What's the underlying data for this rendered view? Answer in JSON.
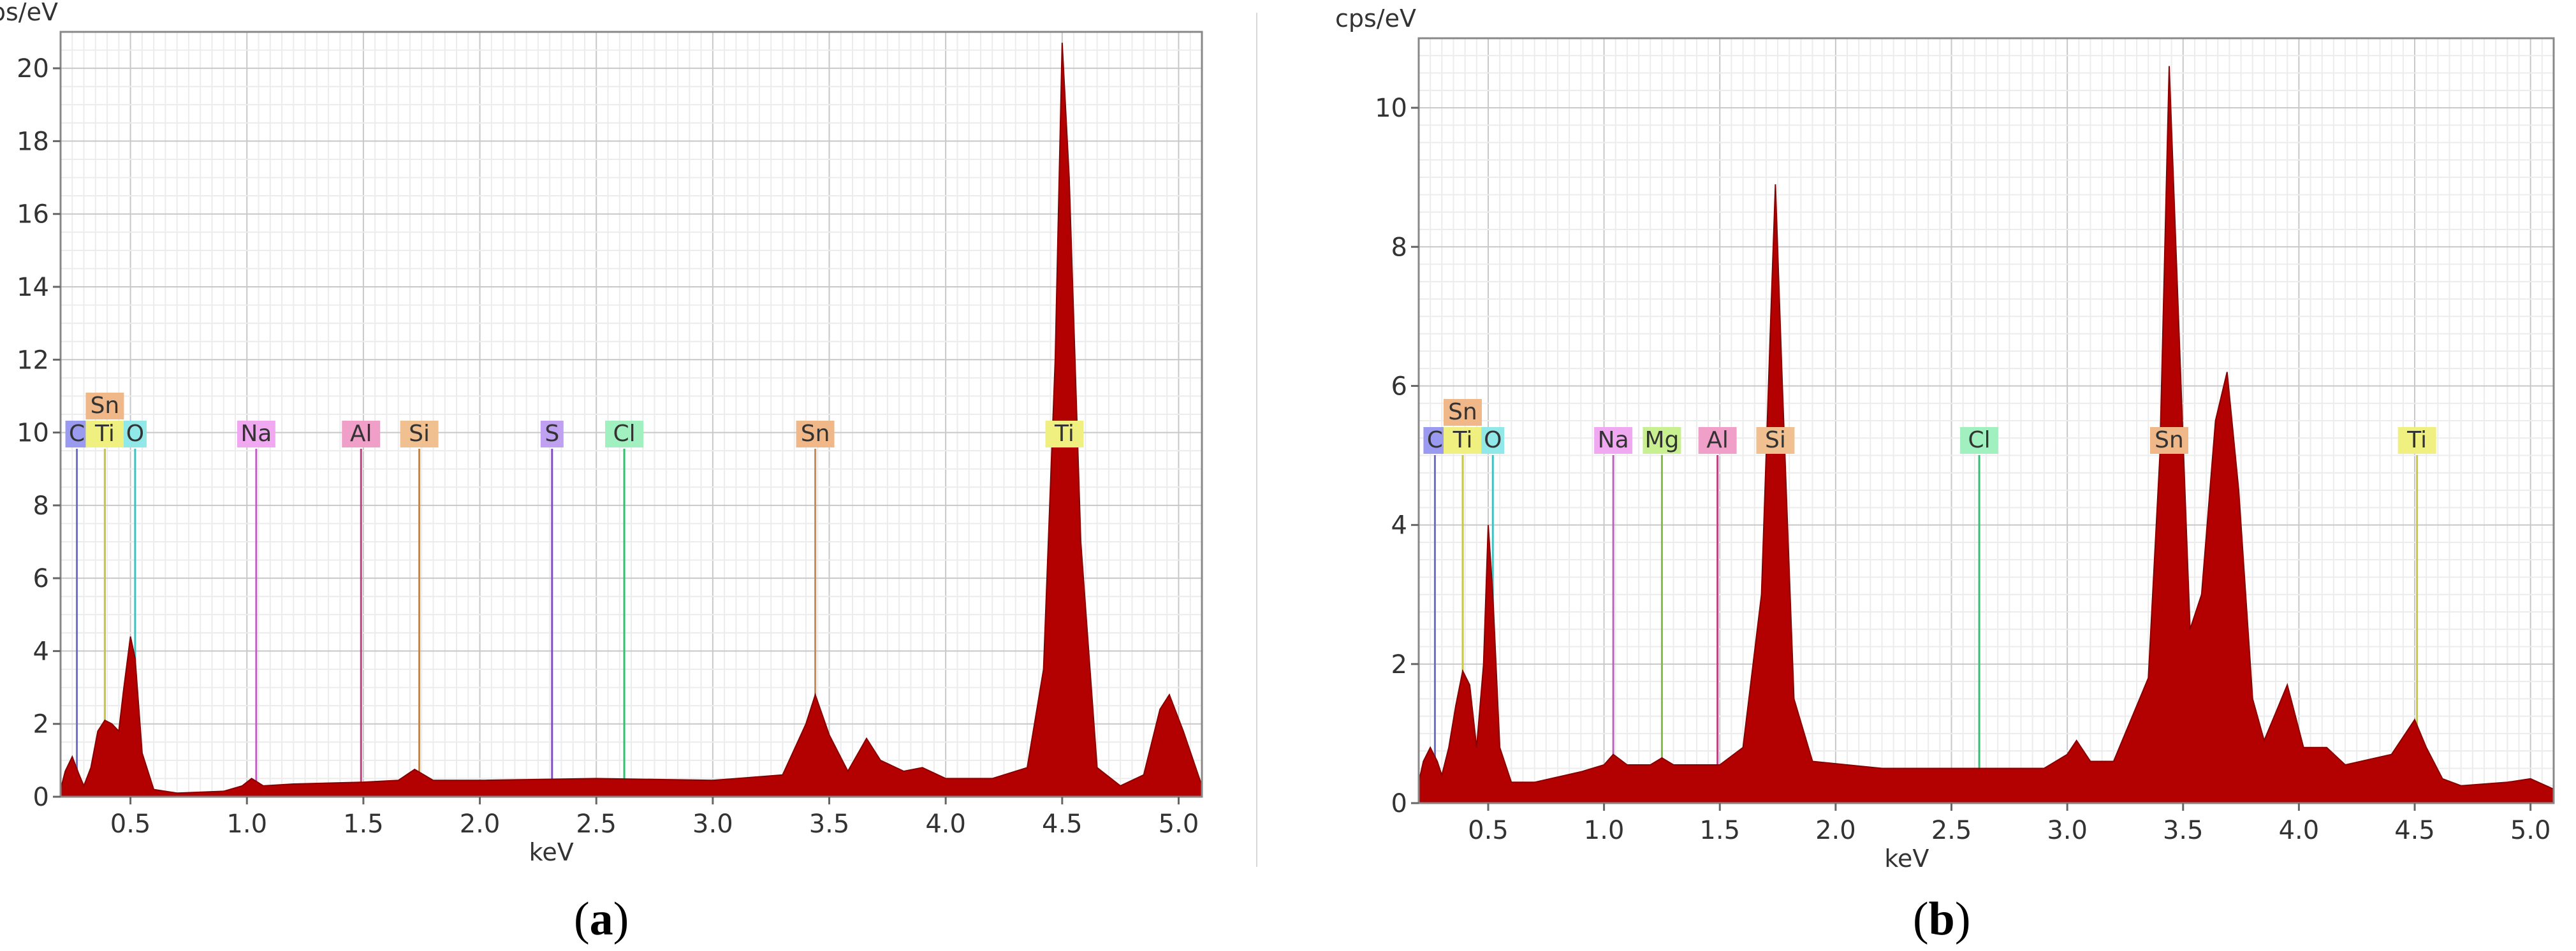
{
  "chart_data": [
    {
      "type": "area",
      "panel_label": "a",
      "xlabel": "keV",
      "ylabel": "cps/eV",
      "xlim": [
        0.2,
        5.1
      ],
      "ylim": [
        0,
        21
      ],
      "x_ticks": [
        "0.5",
        "1.0",
        "1.5",
        "2.0",
        "2.5",
        "3.0",
        "3.5",
        "4.0",
        "4.5",
        "5.0"
      ],
      "y_ticks": [
        "0",
        "2",
        "4",
        "6",
        "8",
        "10",
        "12",
        "14",
        "16",
        "18",
        "20"
      ],
      "grid": true,
      "fill_color": "#b30000",
      "series": [
        {
          "x": [
            0.2,
            0.22,
            0.25,
            0.28,
            0.3,
            0.33,
            0.36,
            0.39,
            0.42,
            0.45,
            0.47,
            0.5,
            0.52,
            0.55,
            0.6,
            0.7,
            0.9,
            0.98,
            1.02,
            1.07,
            1.2,
            1.5,
            1.65,
            1.72,
            1.8,
            2.0,
            2.5,
            3.0,
            3.3,
            3.4,
            3.44,
            3.5,
            3.58,
            3.66,
            3.72,
            3.82,
            3.9,
            4.0,
            4.2,
            4.35,
            4.42,
            4.47,
            4.5,
            4.53,
            4.58,
            4.65,
            4.75,
            4.85,
            4.92,
            4.96,
            5.02,
            5.1
          ],
          "y": [
            0.2,
            0.7,
            1.1,
            0.6,
            0.3,
            0.8,
            1.8,
            2.1,
            2.0,
            1.8,
            2.9,
            4.4,
            3.8,
            1.2,
            0.2,
            0.1,
            0.15,
            0.3,
            0.5,
            0.3,
            0.35,
            0.4,
            0.45,
            0.75,
            0.45,
            0.45,
            0.5,
            0.45,
            0.6,
            2.0,
            2.8,
            1.7,
            0.7,
            1.6,
            1.0,
            0.7,
            0.8,
            0.5,
            0.5,
            0.8,
            3.5,
            12.0,
            20.7,
            17.0,
            7.0,
            0.8,
            0.3,
            0.6,
            2.4,
            2.8,
            1.8,
            0.3
          ]
        }
      ],
      "element_markers": [
        {
          "label": "C",
          "x": 0.27,
          "row": 0,
          "color": "#6e6ecf",
          "bg": "#9a9af0"
        },
        {
          "label": "Sn",
          "x": 0.39,
          "row": 1,
          "color": "#c98b55",
          "bg": "#f0b888"
        },
        {
          "label": "Ti",
          "x": 0.39,
          "row": 0,
          "color": "#c9c940",
          "bg": "#f0f080"
        },
        {
          "label": "O",
          "x": 0.52,
          "row": 0,
          "color": "#40c0c0",
          "bg": "#90e8e8"
        },
        {
          "label": "Na",
          "x": 1.04,
          "row": 0,
          "color": "#c060c0",
          "bg": "#f0a8f0"
        },
        {
          "label": "Al",
          "x": 1.49,
          "row": 0,
          "color": "#c04080",
          "bg": "#f0a0c8"
        },
        {
          "label": "Si",
          "x": 1.74,
          "row": 0,
          "color": "#c08850",
          "bg": "#f0c090"
        },
        {
          "label": "S",
          "x": 2.31,
          "row": 0,
          "color": "#8050c0",
          "bg": "#c0a0f0"
        },
        {
          "label": "Cl",
          "x": 2.62,
          "row": 0,
          "color": "#30c070",
          "bg": "#a0f0c0"
        },
        {
          "label": "Sn",
          "x": 3.44,
          "row": 0,
          "color": "#c98b55",
          "bg": "#f0b888"
        },
        {
          "label": "Ti",
          "x": 4.51,
          "row": 0,
          "color": "#c9c940",
          "bg": "#f0f080"
        }
      ]
    },
    {
      "type": "area",
      "panel_label": "b",
      "xlabel": "keV",
      "ylabel": "cps/eV",
      "xlim": [
        0.2,
        5.1
      ],
      "ylim": [
        0,
        11
      ],
      "x_ticks": [
        "0.5",
        "1.0",
        "1.5",
        "2.0",
        "2.5",
        "3.0",
        "3.5",
        "4.0",
        "4.5",
        "5.0"
      ],
      "y_ticks": [
        "0",
        "2",
        "4",
        "6",
        "8",
        "10"
      ],
      "grid": true,
      "fill_color": "#b30000",
      "series": [
        {
          "x": [
            0.2,
            0.22,
            0.25,
            0.28,
            0.3,
            0.33,
            0.36,
            0.39,
            0.42,
            0.45,
            0.48,
            0.5,
            0.52,
            0.55,
            0.6,
            0.7,
            0.9,
            1.0,
            1.04,
            1.1,
            1.2,
            1.25,
            1.3,
            1.5,
            1.6,
            1.68,
            1.72,
            1.74,
            1.77,
            1.82,
            1.9,
            2.2,
            2.5,
            2.9,
            3.0,
            3.04,
            3.1,
            3.2,
            3.35,
            3.4,
            3.44,
            3.48,
            3.53,
            3.58,
            3.64,
            3.69,
            3.74,
            3.8,
            3.85,
            3.9,
            3.95,
            4.02,
            4.12,
            4.2,
            4.4,
            4.5,
            4.55,
            4.62,
            4.7,
            4.9,
            5.0,
            5.1
          ],
          "y": [
            0.3,
            0.6,
            0.8,
            0.6,
            0.4,
            0.8,
            1.4,
            1.9,
            1.7,
            0.8,
            2.0,
            4.0,
            3.0,
            0.8,
            0.3,
            0.3,
            0.45,
            0.55,
            0.7,
            0.55,
            0.55,
            0.65,
            0.55,
            0.55,
            0.8,
            3.0,
            7.0,
            8.9,
            6.0,
            1.5,
            0.6,
            0.5,
            0.5,
            0.5,
            0.7,
            0.9,
            0.6,
            0.6,
            1.8,
            5.0,
            10.6,
            7.0,
            2.5,
            3.0,
            5.5,
            6.2,
            4.5,
            1.5,
            0.9,
            1.3,
            1.7,
            0.8,
            0.8,
            0.55,
            0.7,
            1.2,
            0.8,
            0.35,
            0.25,
            0.3,
            0.35,
            0.2
          ]
        }
      ],
      "element_markers": [
        {
          "label": "C",
          "x": 0.27,
          "row": 0,
          "color": "#6e6ecf",
          "bg": "#9a9af0"
        },
        {
          "label": "Sn",
          "x": 0.39,
          "row": 1,
          "color": "#c98b55",
          "bg": "#f0b888"
        },
        {
          "label": "Ti",
          "x": 0.39,
          "row": 0,
          "color": "#c9c940",
          "bg": "#f0f080"
        },
        {
          "label": "O",
          "x": 0.52,
          "row": 0,
          "color": "#40c0c0",
          "bg": "#90e8e8"
        },
        {
          "label": "Na",
          "x": 1.04,
          "row": 0,
          "color": "#c060c0",
          "bg": "#f0a8f0"
        },
        {
          "label": "Mg",
          "x": 1.25,
          "row": 0,
          "color": "#80c040",
          "bg": "#c8f090"
        },
        {
          "label": "Al",
          "x": 1.49,
          "row": 0,
          "color": "#c04080",
          "bg": "#f0a0c8"
        },
        {
          "label": "Si",
          "x": 1.74,
          "row": 0,
          "color": "#c08850",
          "bg": "#f0c090"
        },
        {
          "label": "Cl",
          "x": 2.62,
          "row": 0,
          "color": "#30c070",
          "bg": "#a0f0c0"
        },
        {
          "label": "Sn",
          "x": 3.44,
          "row": 0,
          "color": "#c98b55",
          "bg": "#f0b888"
        },
        {
          "label": "Ti",
          "x": 4.51,
          "row": 0,
          "color": "#c9c940",
          "bg": "#f0f080"
        }
      ]
    }
  ]
}
